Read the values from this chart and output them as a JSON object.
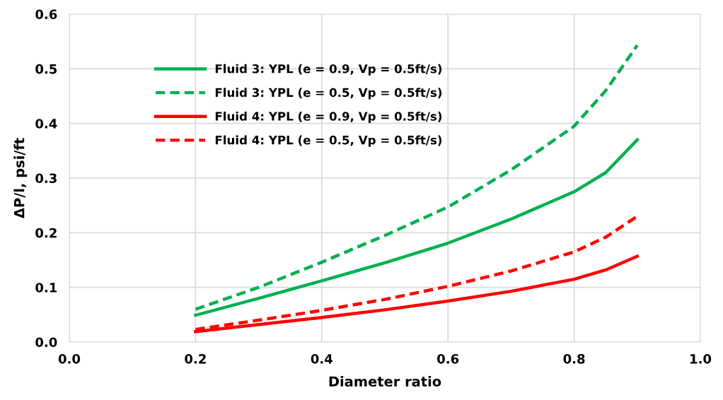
{
  "chart_data": {
    "type": "line",
    "xlabel": "Diameter ratio",
    "ylabel": "ΔP/l, psi/ft",
    "x": [
      0.2,
      0.3,
      0.4,
      0.5,
      0.6,
      0.7,
      0.8,
      0.85,
      0.9
    ],
    "series": [
      {
        "name": "Fluid 3: YPL (e = 0.9, Vp = 0.5ft/s)",
        "color": "#00b050",
        "line_style": "solid",
        "values": [
          0.049,
          0.08,
          0.112,
          0.145,
          0.181,
          0.225,
          0.275,
          0.31,
          0.37
        ]
      },
      {
        "name": "Fluid 3: YPL (e = 0.5, Vp = 0.5ft/s)",
        "color": "#00b050",
        "line_style": "dashed",
        "values": [
          0.06,
          0.1,
          0.146,
          0.195,
          0.247,
          0.315,
          0.395,
          0.46,
          0.543
        ]
      },
      {
        "name": "Fluid 4: YPL (e = 0.9, Vp = 0.5ft/s)",
        "color": "#ff0000",
        "line_style": "solid",
        "values": [
          0.019,
          0.032,
          0.045,
          0.059,
          0.075,
          0.093,
          0.115,
          0.132,
          0.157
        ]
      },
      {
        "name": "Fluid 4: YPL (e = 0.5, Vp = 0.5ft/s)",
        "color": "#ff0000",
        "line_style": "dashed",
        "values": [
          0.023,
          0.04,
          0.058,
          0.078,
          0.102,
          0.13,
          0.165,
          0.192,
          0.23
        ]
      }
    ],
    "xlim": [
      0.0,
      1.0
    ],
    "xticks": [
      {
        "value": 0,
        "label": "0.0"
      },
      0.2,
      0.4,
      0.6,
      0.8,
      {
        "value": 1,
        "label": "1.0"
      }
    ],
    "ylim": [
      0.0,
      0.6
    ],
    "yticks": [
      {
        "value": 0,
        "label": "0.0"
      },
      0.1,
      0.2,
      0.3,
      0.4,
      0.5,
      0.6
    ],
    "grid": true,
    "legend": "top left",
    "marker": "none"
  }
}
